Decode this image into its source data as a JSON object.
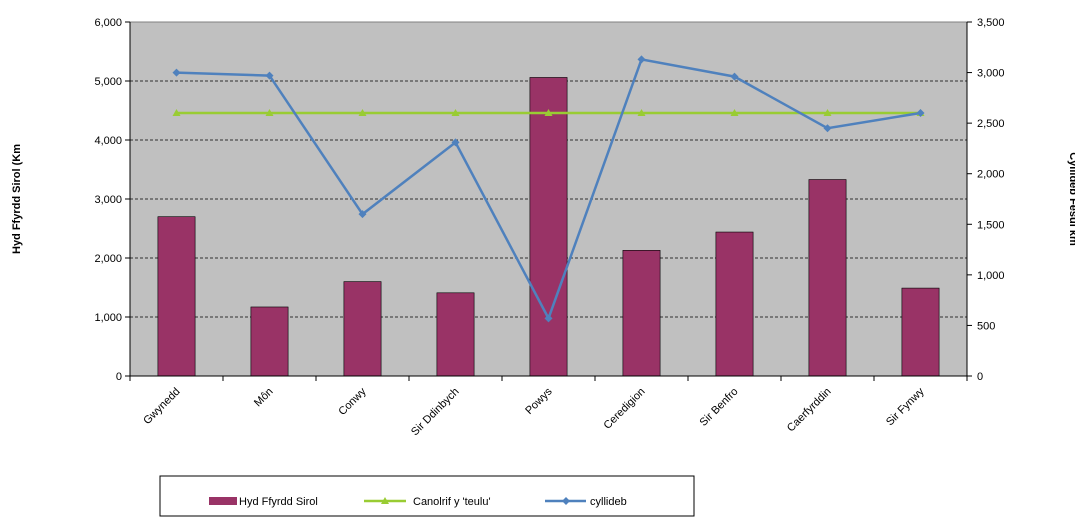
{
  "chart_data": {
    "type": "bar",
    "categories": [
      "Gwynedd",
      "Môn",
      "Conwy",
      "Sir Ddinbych",
      "Powys",
      "Ceredigion",
      "Sir Benfro",
      "Caerfyrddin",
      "Sir Fynwy"
    ],
    "series": [
      {
        "name": "Hyd Ffyrdd Sirol",
        "type": "bar",
        "axis": "left",
        "color": "#993366",
        "values": [
          2700,
          1170,
          1600,
          1410,
          5060,
          2130,
          2440,
          3330,
          1490
        ]
      },
      {
        "name": "Canolrif y 'teulu'",
        "type": "line",
        "axis": "right",
        "color": "#99CC33",
        "values": [
          2600,
          2600,
          2600,
          2600,
          2600,
          2600,
          2600,
          2600,
          2600
        ]
      },
      {
        "name": "cyllideb",
        "type": "line",
        "axis": "right",
        "color": "#4F81BD",
        "values": [
          3000,
          2970,
          1600,
          2310,
          570,
          3130,
          2960,
          2450,
          2600
        ]
      }
    ],
    "ylabel": "Hyd Ffyrdd Sirol (Km",
    "y2label": "Cyllideb Fesul km",
    "ylim": [
      0,
      6000
    ],
    "y2lim": [
      0,
      3500
    ],
    "yticks": [
      "0",
      "1,000",
      "2,000",
      "3,000",
      "4,000",
      "5,000",
      "6,000"
    ],
    "y2ticks": [
      "0",
      "500",
      "1,000",
      "1,500",
      "2,000",
      "2,500",
      "3,000",
      "3,500"
    ],
    "grid": true,
    "plot_background": "#C0C0C0",
    "legend": "bottom"
  }
}
